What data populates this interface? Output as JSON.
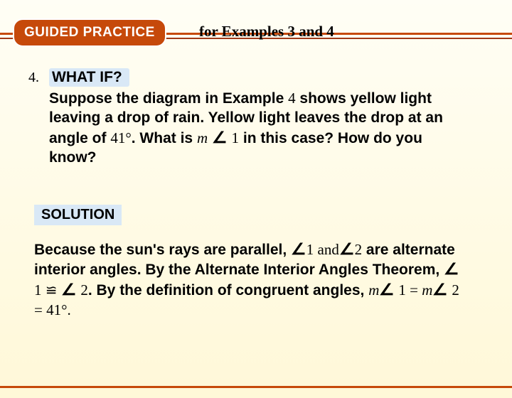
{
  "header": {
    "badge": "GUIDED PRACTICE",
    "subtitle": "for Examples 3 and 4"
  },
  "question": {
    "number": "4.",
    "whatif": "WHAT IF?",
    "line1a": "Suppose the diagram in Example ",
    "ex_num": "4",
    "line1b": " shows yellow light leaving a drop of rain. Yellow light leaves the drop at an angle of ",
    "angle_val": "41°",
    "line1c": ". What is ",
    "m": "m",
    "one": "1",
    "line1d": " in this case? How do you know?"
  },
  "solution": {
    "label": "SOLUTION",
    "p1a": "Because the sun's rays are parallel, ",
    "p1b": "1 and",
    "p1c": "2 are alternate interior angles. By the Alternate Interior Angles Theorem, ",
    "p1d": "1 ",
    "cong": "≌",
    "p1e": " 2. By the definition of congruent angles, ",
    "m1": "m",
    "p1f": " 1 = ",
    "m2": "m",
    "p1g": " 2 = 41°."
  },
  "colors": {
    "orange": "#c6490a",
    "maroon": "#a03818",
    "badge_bg": "#d9e8f6",
    "page_bg_top": "#fffef5",
    "page_bg_bottom": "#fff8d8"
  }
}
